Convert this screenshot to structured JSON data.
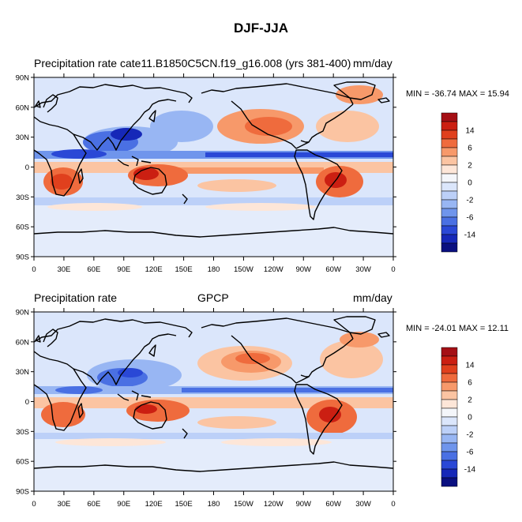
{
  "title": "DJF-JJA",
  "panels": [
    {
      "left_label": "Precipitation rate",
      "center_label": "cate11.B1850C5CN.f19_g16.008 (yrs 381-400)",
      "units": "mm/day",
      "stats": "MIN = -36.74 MAX =  15.94"
    },
    {
      "left_label": "Precipitation rate",
      "center_label": "GPCP",
      "units": "mm/day",
      "stats": "MIN = -24.01 MAX =  12.11"
    }
  ],
  "lat_ticks": [
    "90N",
    "60N",
    "30N",
    "0",
    "30S",
    "60S",
    "90S"
  ],
  "lon_ticks": [
    "0",
    "30E",
    "60E",
    "90E",
    "120E",
    "150E",
    "180",
    "150W",
    "120W",
    "90W",
    "60W",
    "30W",
    "0"
  ],
  "colorbar": {
    "labels": [
      "14",
      "6",
      "2",
      "0",
      "-2",
      "-6",
      "-14"
    ],
    "colors": [
      "#a50f15",
      "#cb1f12",
      "#e0401d",
      "#ef6b3d",
      "#f7996a",
      "#fbc4a2",
      "#fde6d8",
      "#f4f6fa",
      "#dbe6fb",
      "#bcd0f8",
      "#98b6f3",
      "#6f95ec",
      "#4a70e3",
      "#2a48d6",
      "#1628b8",
      "#0a1080"
    ]
  },
  "colors": {
    "neutral": "#f4f6fa",
    "wet_djf": "#ef6b3d",
    "wet_jja": "#2a48d6",
    "coast": "#000000"
  }
}
